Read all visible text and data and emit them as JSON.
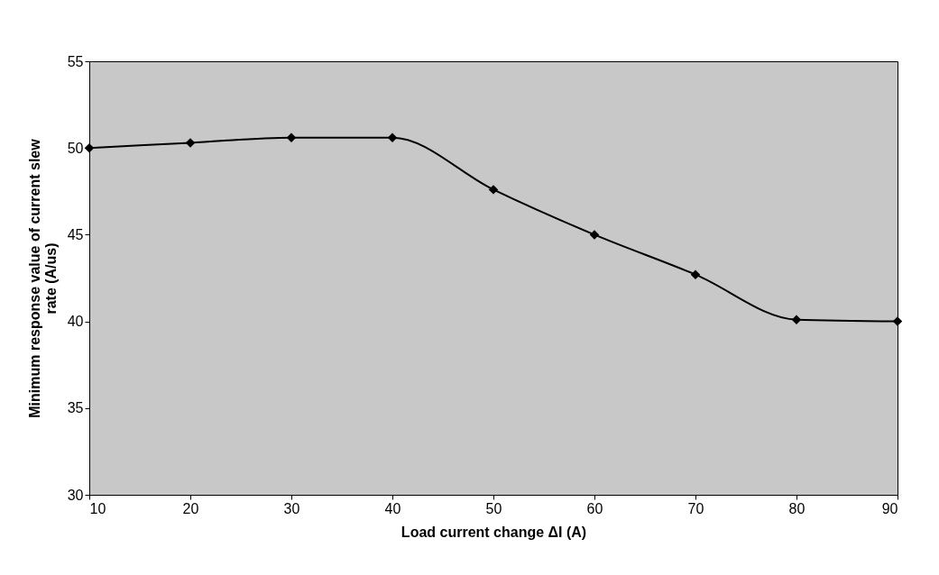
{
  "chart_data": {
    "type": "line",
    "xlabel": "Load current change ΔI (A)",
    "ylabel": "Minimum response value of current slew rate (A/us)",
    "x": [
      10,
      20,
      30,
      40,
      50,
      60,
      70,
      80,
      90
    ],
    "series": [
      {
        "color": "#000000",
        "values": [
          50.0,
          50.3,
          50.6,
          50.6,
          47.6,
          45.0,
          42.7,
          40.1,
          40.0
        ]
      }
    ],
    "xlim": [
      10,
      90
    ],
    "xticks": [
      10,
      20,
      30,
      40,
      50,
      60,
      70,
      80,
      90
    ],
    "ylim": [
      30,
      55
    ],
    "yticks": [
      30,
      35,
      40,
      45,
      50,
      55
    ],
    "grid": false,
    "marker": "diamond",
    "line_style": "solid"
  }
}
